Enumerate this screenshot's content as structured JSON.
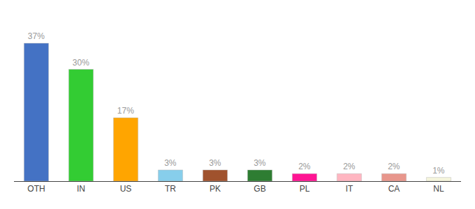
{
  "chart_data": {
    "type": "bar",
    "categories": [
      "OTH",
      "IN",
      "US",
      "TR",
      "PK",
      "GB",
      "PL",
      "IT",
      "CA",
      "NL"
    ],
    "values": [
      37,
      30,
      17,
      3,
      3,
      3,
      2,
      2,
      2,
      1
    ],
    "value_labels": [
      "37%",
      "30%",
      "17%",
      "3%",
      "3%",
      "3%",
      "2%",
      "2%",
      "2%",
      "1%"
    ],
    "colors": [
      "#4472C4",
      "#33CC33",
      "#FFA500",
      "#87CEEB",
      "#A0522D",
      "#2E7D32",
      "#FF1493",
      "#FFB6C1",
      "#E8968C",
      "#F5F5DC"
    ],
    "ylim": [
      0,
      43
    ],
    "data_labels": true,
    "tick_labels": "x",
    "grid": false
  }
}
